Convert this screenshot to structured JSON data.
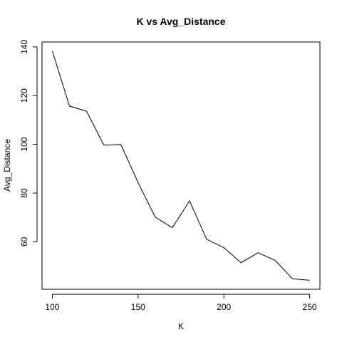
{
  "chart_data": {
    "type": "line",
    "title": "K vs Avg_Distance",
    "xlabel": "K",
    "ylabel": "Avg_Distance",
    "x": [
      100,
      110,
      120,
      130,
      140,
      150,
      160,
      170,
      180,
      190,
      200,
      210,
      220,
      230,
      240,
      250
    ],
    "series": [
      {
        "values": [
          138.3,
          115.7,
          113.6,
          99.7,
          99.9,
          84.3,
          70.1,
          65.8,
          76.8,
          61.0,
          57.6,
          51.4,
          55.5,
          52.3,
          44.8,
          44.2
        ]
      }
    ],
    "xlim": [
      94,
      256
    ],
    "ylim": [
      40.5,
      142
    ],
    "x_ticks": [
      "100",
      "150",
      "200",
      "250"
    ],
    "y_ticks": [
      "60",
      "80",
      "100",
      "120",
      "140"
    ],
    "grid": false,
    "line_color": "#000000"
  }
}
